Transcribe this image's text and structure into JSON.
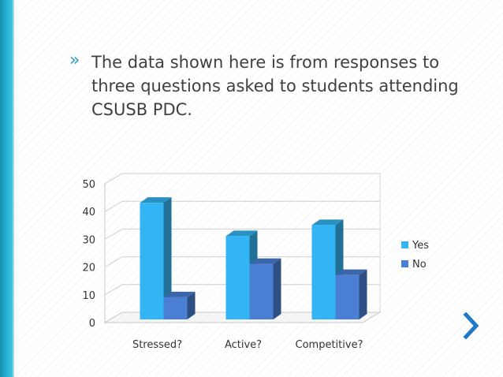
{
  "slide": {
    "bullet_marker": "»",
    "bullet_text": "The data shown here is from responses to three questions asked to students attending CSUSB PDC."
  },
  "colors": {
    "accent": "#2a9fc0",
    "yes_series": "#33b5f5",
    "no_series": "#4a7fd4"
  },
  "chart_data": {
    "type": "bar",
    "style": "3d-clustered-column",
    "categories": [
      "Stressed?",
      "Active?",
      "Competitive?"
    ],
    "series": [
      {
        "name": "Yes",
        "values": [
          42,
          30,
          34
        ],
        "color": "#33b5f5"
      },
      {
        "name": "No",
        "values": [
          8,
          20,
          16
        ],
        "color": "#4a7fd4"
      }
    ],
    "ylim": [
      0,
      50
    ],
    "yticks": [
      0,
      10,
      20,
      30,
      40,
      50
    ],
    "grid": true,
    "legend": "right",
    "title": "",
    "xlabel": "",
    "ylabel": ""
  },
  "nav": {
    "next_icon": "chevron-right-icon"
  }
}
